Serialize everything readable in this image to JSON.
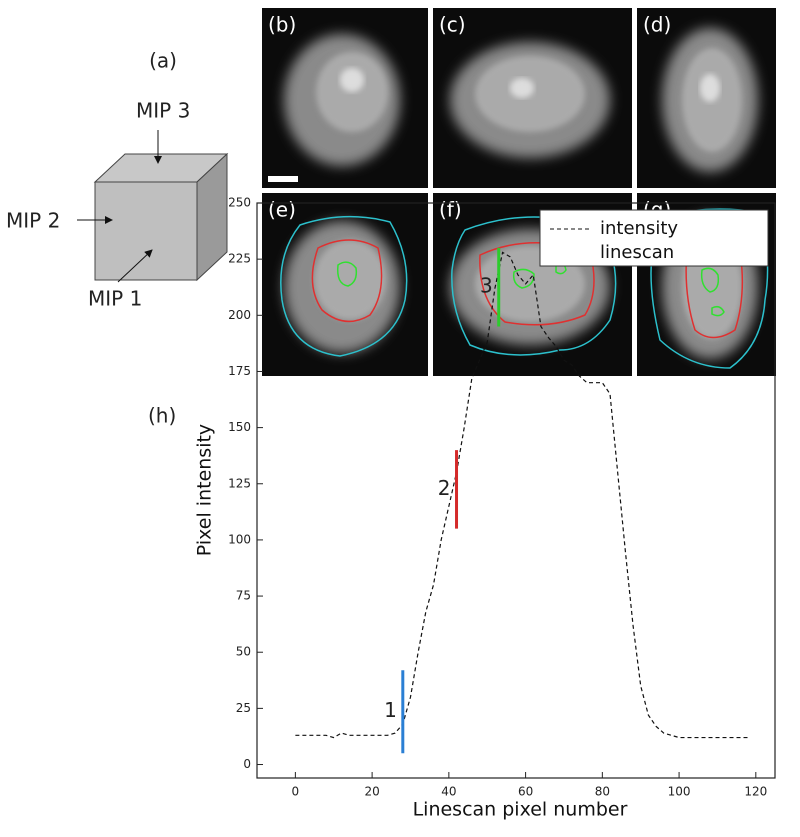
{
  "figure": {
    "diagram": {
      "label": "(a)",
      "mip1": "MIP 1",
      "mip2": "MIP 2",
      "mip3": "MIP 3"
    },
    "images": [
      {
        "label": "(b)"
      },
      {
        "label": "(c)"
      },
      {
        "label": "(d)"
      },
      {
        "label": "(e)"
      },
      {
        "label": "(f)"
      },
      {
        "label": "(g)"
      }
    ]
  },
  "chart_data": {
    "type": "line",
    "panel_label": "(h)",
    "x_label": "Linescan pixel number",
    "y_label": "Pixel intensity",
    "x": [
      0,
      2,
      4,
      6,
      8,
      10,
      12,
      14,
      16,
      18,
      20,
      22,
      24,
      26,
      28,
      30,
      32,
      34,
      36,
      38,
      40,
      42,
      44,
      46,
      48,
      50,
      52,
      54,
      56,
      58,
      60,
      62,
      64,
      66,
      68,
      70,
      72,
      74,
      76,
      78,
      80,
      82,
      84,
      86,
      88,
      90,
      92,
      94,
      96,
      98,
      100,
      102,
      104,
      106,
      108,
      110,
      112,
      114,
      116,
      118
    ],
    "series": [
      {
        "name": "intensity linescan",
        "color": "#111111",
        "values": [
          13,
          13,
          13,
          13,
          13,
          12,
          14,
          13,
          13,
          13,
          13,
          13,
          13,
          14,
          18,
          30,
          50,
          68,
          80,
          100,
          115,
          130,
          150,
          172,
          180,
          188,
          212,
          228,
          226,
          218,
          214,
          218,
          195,
          190,
          186,
          180,
          178,
          173,
          170,
          170,
          170,
          165,
          130,
          95,
          62,
          35,
          22,
          17,
          14,
          13,
          12,
          12,
          12,
          12,
          12,
          12,
          12,
          12,
          12,
          12
        ]
      }
    ],
    "markers": [
      {
        "label": "1",
        "x": 28,
        "y_range": [
          5,
          42
        ],
        "color": "#2a7fd4"
      },
      {
        "label": "2",
        "x": 42,
        "y_range": [
          105,
          140
        ],
        "color": "#d42a2a"
      },
      {
        "label": "3",
        "x": 53,
        "y_range": [
          195,
          230
        ],
        "color": "#2ccc2c"
      }
    ],
    "xlim": [
      -10,
      125
    ],
    "ylim": [
      -6,
      250
    ],
    "xticks": [
      0,
      20,
      40,
      60,
      80,
      100,
      120
    ],
    "yticks": [
      0,
      25,
      50,
      75,
      100,
      125,
      150,
      175,
      200,
      225,
      250
    ],
    "legend": "upper right"
  }
}
